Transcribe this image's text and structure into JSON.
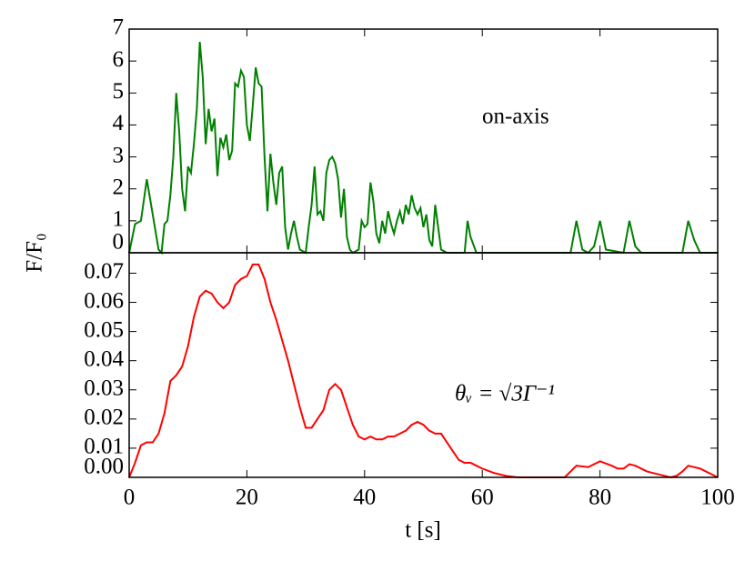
{
  "chart_data": [
    {
      "type": "line",
      "annotation": "on-axis",
      "xlim": [
        0,
        100
      ],
      "ylim": [
        0,
        7
      ],
      "yticks": [
        0,
        1,
        2,
        3,
        4,
        5,
        6,
        7
      ],
      "series": [
        {
          "name": "on-axis",
          "color": "#008000",
          "x": [
            0,
            1,
            2,
            3,
            4,
            5,
            5.5,
            6,
            6.5,
            7,
            7.5,
            8,
            8.5,
            9,
            9.5,
            10,
            10.5,
            11,
            11.5,
            12,
            12.5,
            13,
            13.5,
            14,
            14.5,
            15,
            15.5,
            16,
            16.5,
            17,
            17.5,
            18,
            18.5,
            19,
            19.5,
            20,
            20.5,
            21,
            21.5,
            22,
            22.5,
            23,
            23.5,
            24,
            24.5,
            25,
            25.5,
            26,
            26.5,
            27,
            27.5,
            28,
            28.5,
            29,
            30,
            30.5,
            31,
            31.5,
            32,
            32.5,
            33,
            33.5,
            34,
            34.5,
            35,
            35.5,
            36,
            36.5,
            37,
            37.5,
            38,
            39,
            39.5,
            40,
            40.5,
            41,
            41.5,
            42,
            42.5,
            43,
            43.5,
            44,
            44.5,
            45,
            45.5,
            46,
            46.5,
            47,
            47.5,
            48,
            48.5,
            49,
            49.5,
            50,
            50.5,
            51,
            51.5,
            52,
            52.5,
            53,
            54,
            57,
            57.5,
            58,
            59,
            75,
            76,
            77,
            78,
            79,
            80,
            81,
            84,
            85,
            86,
            87,
            94,
            95,
            96,
            97,
            100
          ],
          "values": [
            0,
            0.9,
            1.0,
            2.3,
            1.2,
            0.1,
            0,
            0.9,
            1.0,
            1.8,
            3.0,
            5.0,
            3.8,
            2.0,
            1.3,
            2.7,
            2.5,
            3.4,
            4.5,
            6.6,
            5.5,
            3.4,
            4.5,
            3.8,
            4.2,
            2.4,
            3.6,
            3.3,
            3.7,
            2.9,
            3.2,
            5.3,
            5.2,
            5.7,
            5.5,
            4.0,
            3.5,
            4.6,
            5.8,
            5.3,
            5.2,
            3.0,
            1.3,
            3.1,
            2.2,
            1.5,
            2.5,
            2.7,
            0.8,
            0.1,
            0.6,
            1.0,
            0.5,
            0.1,
            0,
            0.8,
            1.5,
            2.7,
            1.2,
            1.3,
            1.0,
            2.5,
            2.9,
            3.0,
            2.8,
            2.3,
            1.1,
            2.0,
            0.5,
            0.1,
            0,
            0.1,
            1.0,
            0.8,
            0.9,
            2.2,
            1.6,
            0.6,
            0.3,
            1.0,
            0.6,
            1.3,
            0.9,
            0.6,
            1.0,
            1.3,
            0.9,
            1.5,
            1.2,
            1.8,
            1.4,
            1.2,
            1.4,
            0.8,
            1.2,
            0.4,
            0.2,
            1.5,
            0.8,
            0.1,
            0,
            0,
            1.0,
            0.5,
            0,
            0,
            1.0,
            0.1,
            0,
            0.2,
            1.0,
            0.1,
            0,
            1.0,
            0.2,
            0,
            0,
            1.0,
            0.4,
            0,
            0
          ]
        }
      ]
    },
    {
      "type": "line",
      "annotation": "θᵥ = √3Γ⁻¹",
      "xlabel": "t [s]",
      "ylabel": "F/F₀",
      "xlim": [
        0,
        100
      ],
      "xticks": [
        0,
        20,
        40,
        60,
        80,
        100
      ],
      "ylim": [
        0,
        0.077
      ],
      "yticks": [
        {
          "value": 0,
          "label": "0.00"
        },
        0.01,
        0.02,
        0.03,
        0.04,
        0.05,
        0.06,
        0.07
      ],
      "series": [
        {
          "name": "θᵥ = √3Γ⁻¹",
          "color": "#ff0000",
          "x": [
            0,
            1,
            2,
            3,
            4,
            5,
            6,
            7,
            8,
            9,
            10,
            11,
            12,
            13,
            14,
            15,
            16,
            17,
            18,
            19,
            20,
            21,
            22,
            23,
            24,
            25,
            26,
            27,
            28,
            29,
            30,
            31,
            32,
            33,
            34,
            35,
            36,
            37,
            38,
            39,
            40,
            41,
            42,
            43,
            44,
            45,
            46,
            47,
            48,
            49,
            50,
            51,
            52,
            53,
            54,
            55,
            56,
            57,
            58,
            59,
            60,
            62,
            64,
            66,
            74,
            75,
            76,
            78,
            80,
            82,
            83,
            84,
            85,
            86,
            88,
            90,
            92,
            93,
            94,
            95,
            97,
            99,
            100
          ],
          "values": [
            0,
            0.005,
            0.011,
            0.012,
            0.012,
            0.015,
            0.022,
            0.033,
            0.035,
            0.038,
            0.045,
            0.055,
            0.062,
            0.064,
            0.063,
            0.06,
            0.058,
            0.06,
            0.066,
            0.068,
            0.069,
            0.073,
            0.073,
            0.068,
            0.06,
            0.054,
            0.047,
            0.04,
            0.032,
            0.024,
            0.017,
            0.017,
            0.02,
            0.023,
            0.03,
            0.032,
            0.03,
            0.024,
            0.018,
            0.014,
            0.013,
            0.014,
            0.013,
            0.013,
            0.014,
            0.014,
            0.015,
            0.016,
            0.018,
            0.019,
            0.018,
            0.016,
            0.015,
            0.015,
            0.012,
            0.009,
            0.006,
            0.005,
            0.005,
            0.004,
            0.003,
            0.0015,
            0.0005,
            0,
            0,
            0.002,
            0.004,
            0.0035,
            0.0055,
            0.004,
            0.003,
            0.003,
            0.0045,
            0.004,
            0.002,
            0.001,
            0,
            0.0005,
            0.002,
            0.004,
            0.003,
            0.001,
            0
          ]
        }
      ]
    }
  ]
}
